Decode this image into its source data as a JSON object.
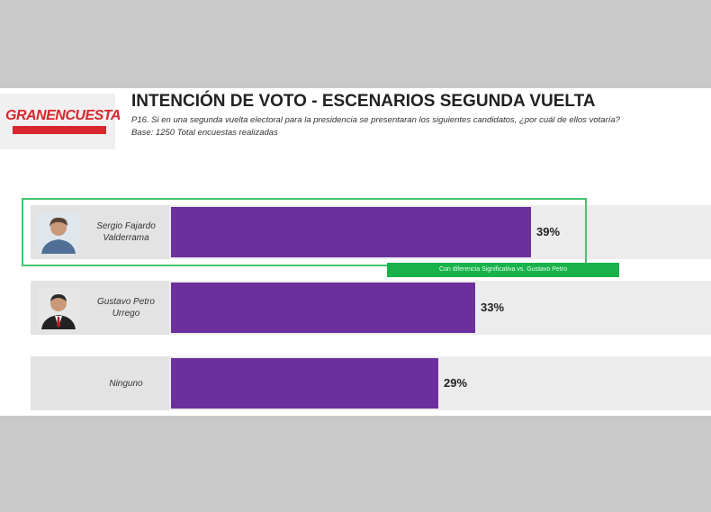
{
  "header": {
    "logo_text": "GRANENCUESTA",
    "title": "INTENCIÓN DE VOTO - ESCENARIOS SEGUNDA VUELTA",
    "question": "P16. Si en una segunda vuelta electoral para la presidencia se presentaran los siguientes candidatos, ¿por cuál de ellos votaría?",
    "base": "Base: 1250 Total encuestas realizadas"
  },
  "note": "Con diferencia Significativa vs. Gustavo Petro",
  "colors": {
    "bar": "#6b2f9e",
    "highlight": "#44c46e",
    "note_bg": "#19b24b",
    "logo_red": "#d7262e"
  },
  "chart_data": {
    "type": "bar",
    "orientation": "horizontal",
    "categories": [
      "Sergio Fajardo Valderrama",
      "Gustavo Petro Urrego",
      "Ninguno"
    ],
    "category_lines": [
      [
        "Sergio Fajardo",
        "Valderrama"
      ],
      [
        "Gustavo Petro",
        "Urrego"
      ],
      [
        "Ninguno"
      ]
    ],
    "values": [
      39,
      33,
      29
    ],
    "value_labels": [
      "39%",
      "33%",
      "29%"
    ],
    "unit": "%",
    "xlim": [
      0,
      60
    ],
    "grid": false
  }
}
